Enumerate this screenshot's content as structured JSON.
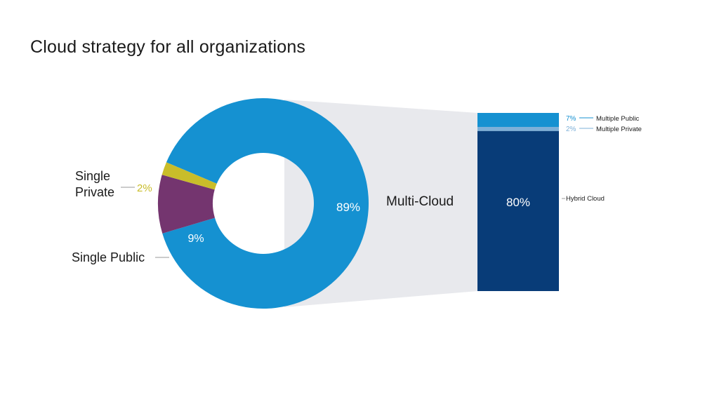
{
  "title": "Cloud strategy for all organizations",
  "colors": {
    "multi_cloud": "#1591d1",
    "single_private": "#c9bd2a",
    "single_public": "#74356f",
    "hybrid_cloud": "#083c78",
    "multiple_public": "#1591d1",
    "multiple_private": "#7db0d8",
    "connector": "#e8e9ed",
    "label_text": "#1a1a1a"
  },
  "chart_data": [
    {
      "type": "pie",
      "variant": "donut",
      "title": "",
      "slices": [
        {
          "name": "Multi-Cloud",
          "value": 89,
          "label": "89%",
          "color": "#1591d1"
        },
        {
          "name": "Single Private",
          "value": 2,
          "label": "2%",
          "color": "#c9bd2a"
        },
        {
          "name": "Single Public",
          "value": 9,
          "label": "9%",
          "color": "#74356f"
        }
      ]
    },
    {
      "type": "bar",
      "variant": "stacked-100",
      "title": "",
      "categories": [
        "Multi-Cloud"
      ],
      "series": [
        {
          "name": "Hybrid Cloud",
          "values": [
            80
          ],
          "label": "80%",
          "color": "#083c78"
        },
        {
          "name": "Multiple Private",
          "values": [
            2
          ],
          "label": "2%",
          "color": "#7db0d8"
        },
        {
          "name": "Multiple Public",
          "values": [
            7
          ],
          "label": "7%",
          "color": "#1591d1"
        }
      ]
    }
  ],
  "labels": {
    "multi_cloud": "Multi-Cloud",
    "single_private_line1": "Single",
    "single_private_line2": "Private",
    "single_public": "Single Public",
    "pct_multi": "89%",
    "pct_single_private": "2%",
    "pct_single_public": "9%",
    "pct_hybrid": "80%",
    "pct_multiple_public": "7%",
    "pct_multiple_private": "2%",
    "hybrid_cloud": "Hybrid Cloud",
    "multiple_public": "Multiple Public",
    "multiple_private": "Multiple Private"
  }
}
